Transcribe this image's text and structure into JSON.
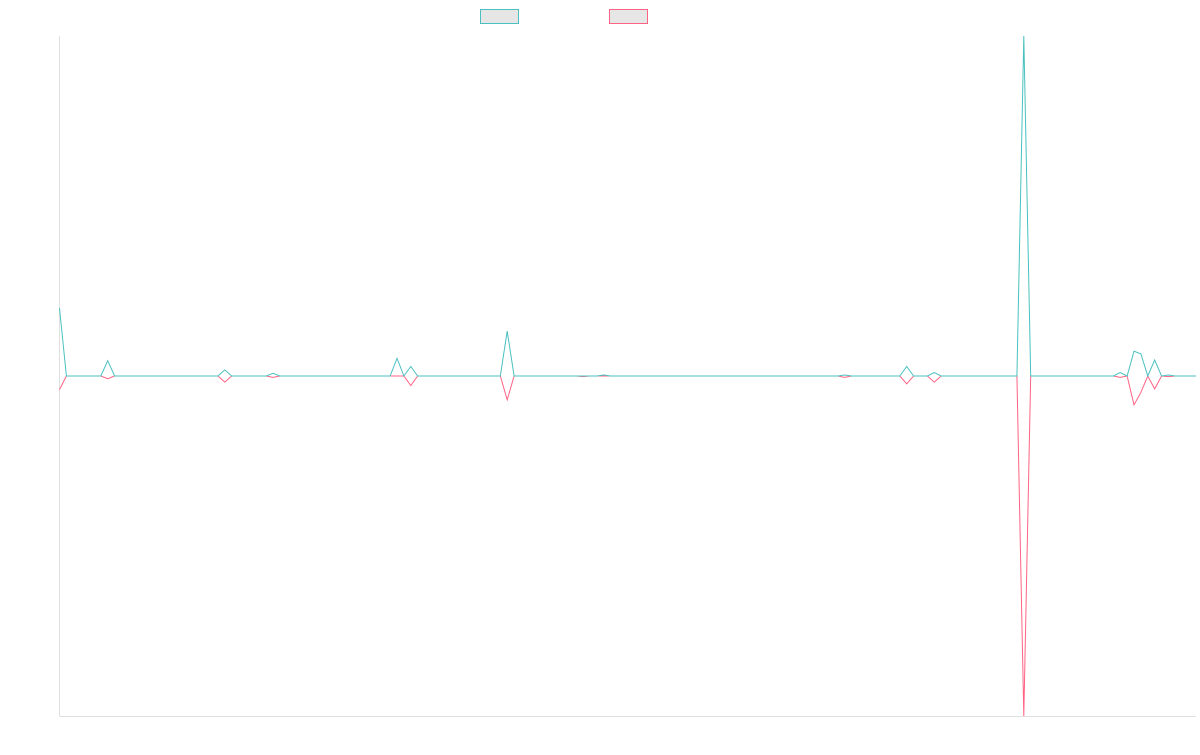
{
  "chart_data": {
    "type": "line",
    "title": "",
    "xlabel": "",
    "ylabel": "",
    "grid": false,
    "legend_position": "top-center",
    "ylim": [
      -100,
      100
    ],
    "x": [
      0,
      1,
      2,
      3,
      4,
      5,
      6,
      7,
      8,
      9,
      10,
      11,
      12,
      13,
      14,
      15,
      16,
      17,
      18,
      19,
      20,
      21,
      22,
      23,
      24,
      25,
      26,
      27,
      28,
      29,
      30,
      31,
      32,
      33,
      34,
      35,
      36,
      37,
      38,
      39,
      40,
      41,
      42,
      43,
      44,
      45,
      46,
      47,
      48,
      49,
      50,
      51,
      52,
      53,
      54,
      55,
      56,
      57,
      58,
      59,
      60,
      61,
      62,
      63,
      64,
      65,
      66,
      67,
      68,
      69,
      70,
      71,
      72,
      73,
      74,
      75,
      76,
      77,
      78,
      79,
      80,
      81,
      82,
      83,
      84,
      85,
      86,
      87,
      88,
      89,
      90,
      91,
      92,
      93,
      94,
      95,
      96,
      97,
      98,
      99,
      100,
      101,
      102,
      103,
      104,
      105,
      106,
      107,
      108,
      109,
      110,
      111,
      112,
      113,
      114,
      115,
      116,
      117,
      118,
      119,
      120,
      121,
      122,
      123,
      124,
      125,
      126,
      127,
      128,
      129,
      130,
      131,
      132,
      133,
      134,
      135,
      136,
      137,
      138,
      139,
      140,
      141,
      142,
      143,
      144,
      145,
      146,
      147,
      148,
      149,
      150,
      151,
      152,
      153,
      154,
      155,
      156,
      157,
      158,
      159,
      160,
      161,
      162,
      163,
      164,
      165
    ],
    "series": [
      {
        "name": "",
        "color": "#4bc0c0",
        "values": [
          20,
          0,
          0,
          0,
          0,
          0,
          0,
          4.5,
          0,
          0,
          0,
          0,
          0,
          0,
          0,
          0,
          0,
          0,
          0,
          0,
          0,
          0,
          0,
          0,
          1.8,
          0,
          0,
          0,
          0,
          0,
          0,
          0.8,
          0,
          0,
          0,
          0,
          0,
          0,
          0,
          0,
          0,
          0,
          0,
          0,
          0,
          0,
          0,
          0,
          0,
          5.2,
          0,
          2.8,
          0,
          0,
          0,
          0,
          0,
          0,
          0,
          0,
          0,
          0,
          0,
          0,
          0,
          13.2,
          0,
          0,
          0,
          0,
          0,
          0,
          0,
          0,
          0,
          0,
          0,
          0,
          0,
          0.3,
          0,
          0,
          0,
          0,
          0,
          0,
          0,
          0,
          0,
          0,
          0,
          0,
          0,
          0,
          0,
          0,
          0,
          0,
          0,
          0,
          0,
          0,
          0,
          0,
          0,
          0,
          0,
          0,
          0,
          0,
          0,
          0,
          0,
          0,
          0.3,
          0,
          0,
          0,
          0,
          0,
          0,
          0,
          0,
          2.8,
          0,
          0,
          0,
          1,
          0,
          0,
          0,
          0,
          0,
          0,
          0,
          0,
          0,
          0,
          0,
          0,
          100,
          0,
          0,
          0,
          0,
          0,
          0,
          0,
          0,
          0,
          0,
          0,
          0,
          0,
          1,
          0,
          7.3,
          6.5,
          0,
          4.7,
          0,
          0.3,
          0,
          0,
          0,
          0
        ]
      },
      {
        "name": "",
        "color": "#ff6384",
        "values": [
          -4,
          0,
          0,
          0,
          0,
          0,
          0,
          -0.8,
          0,
          0,
          0,
          0,
          0,
          0,
          0,
          0,
          0,
          0,
          0,
          0,
          0,
          0,
          0,
          0,
          -1.8,
          0,
          0,
          0,
          0,
          0,
          0,
          -0.4,
          0,
          0,
          0,
          0,
          0,
          0,
          0,
          0,
          0,
          0,
          0,
          0,
          0,
          0,
          0,
          0,
          0,
          0,
          0,
          -2.8,
          0,
          0,
          0,
          0,
          0,
          0,
          0,
          0,
          0,
          0,
          0,
          0,
          0,
          -7,
          0,
          0,
          0,
          0,
          0,
          0,
          0,
          0,
          0,
          0,
          -0.2,
          0,
          0,
          0,
          0,
          0,
          0,
          0,
          0,
          0,
          0,
          0,
          0,
          0,
          0,
          0,
          0,
          0,
          0,
          0,
          0,
          0,
          0,
          0,
          0,
          0,
          0,
          0,
          0,
          0,
          0,
          0,
          0,
          0,
          0,
          0,
          0,
          0,
          -0.4,
          0,
          0,
          0,
          0,
          0,
          0,
          0,
          0,
          -2.3,
          0,
          0,
          0,
          -1.8,
          0,
          0,
          0,
          0,
          0,
          0,
          0,
          0,
          0,
          0,
          0,
          0,
          -100,
          0,
          0,
          0,
          0,
          0,
          0,
          0,
          0,
          0,
          0,
          0,
          0,
          0,
          -0.4,
          0,
          -8.5,
          -4.8,
          0,
          -3.8,
          0,
          -0.2,
          0,
          0,
          0,
          0
        ]
      }
    ]
  }
}
